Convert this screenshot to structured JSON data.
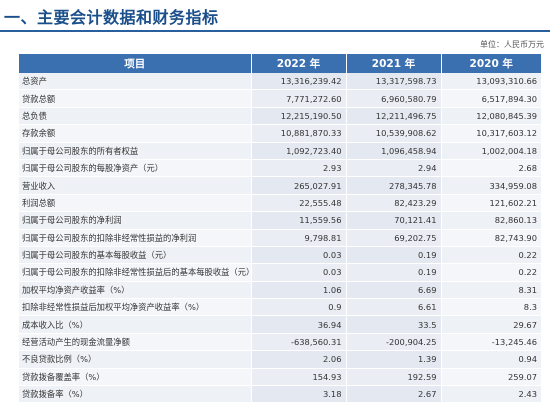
{
  "header": {
    "title": "一、主要会计数据和财务指标",
    "unit": "单位：人民币万元"
  },
  "table": {
    "headers": [
      "项目",
      "2022 年",
      "2021 年",
      "2020 年"
    ],
    "rows": [
      [
        "总资产",
        "13,316,239.42",
        "13,317,598.73",
        "13,093,310.66"
      ],
      [
        "贷款总额",
        "7,771,272.60",
        "6,960,580.79",
        "6,517,894.30"
      ],
      [
        "总负债",
        "12,215,190.50",
        "12,211,496.75",
        "12,080,845.39"
      ],
      [
        "存款余额",
        "10,881,870.33",
        "10,539,908.62",
        "10,317,603.12"
      ],
      [
        "归属于母公司股东的所有者权益",
        "1,092,723.40",
        "1,096,458.94",
        "1,002,004.18"
      ],
      [
        "归属于母公司股东的每股净资产（元）",
        "2.93",
        "2.94",
        "2.68"
      ],
      [
        "营业收入",
        "265,027.91",
        "278,345.78",
        "334,959.08"
      ],
      [
        "利润总额",
        "22,555.48",
        "82,423.29",
        "121,602.21"
      ],
      [
        "归属于母公司股东的净利润",
        "11,559.56",
        "70,121.41",
        "82,860.13"
      ],
      [
        "归属于母公司股东的扣除非经常性损益的净利润",
        "9,798.81",
        "69,202.75",
        "82,743.90"
      ],
      [
        "归属于母公司股东的基本每股收益（元）",
        "0.03",
        "0.19",
        "0.22"
      ],
      [
        "归属于母公司股东的扣除非经常性损益后的基本每股收益（元）",
        "0.03",
        "0.19",
        "0.22"
      ],
      [
        "加权平均净资产收益率（%）",
        "1.06",
        "6.69",
        "8.31"
      ],
      [
        "扣除非经常性损益后加权平均净资产收益率（%）",
        "0.9",
        "6.61",
        "8.3"
      ],
      [
        "成本收入比（%）",
        "36.94",
        "33.5",
        "29.67"
      ],
      [
        "经营活动产生的现金流量净额",
        "-638,560.31",
        "-200,904.25",
        "-13,245.46"
      ],
      [
        "不良贷款比例（%）",
        "2.06",
        "1.39",
        "0.94"
      ],
      [
        "贷款拨备覆盖率（%）",
        "154.93",
        "192.59",
        "259.07"
      ],
      [
        "贷款拨备率（%）",
        "3.18",
        "2.67",
        "2.43"
      ]
    ]
  }
}
